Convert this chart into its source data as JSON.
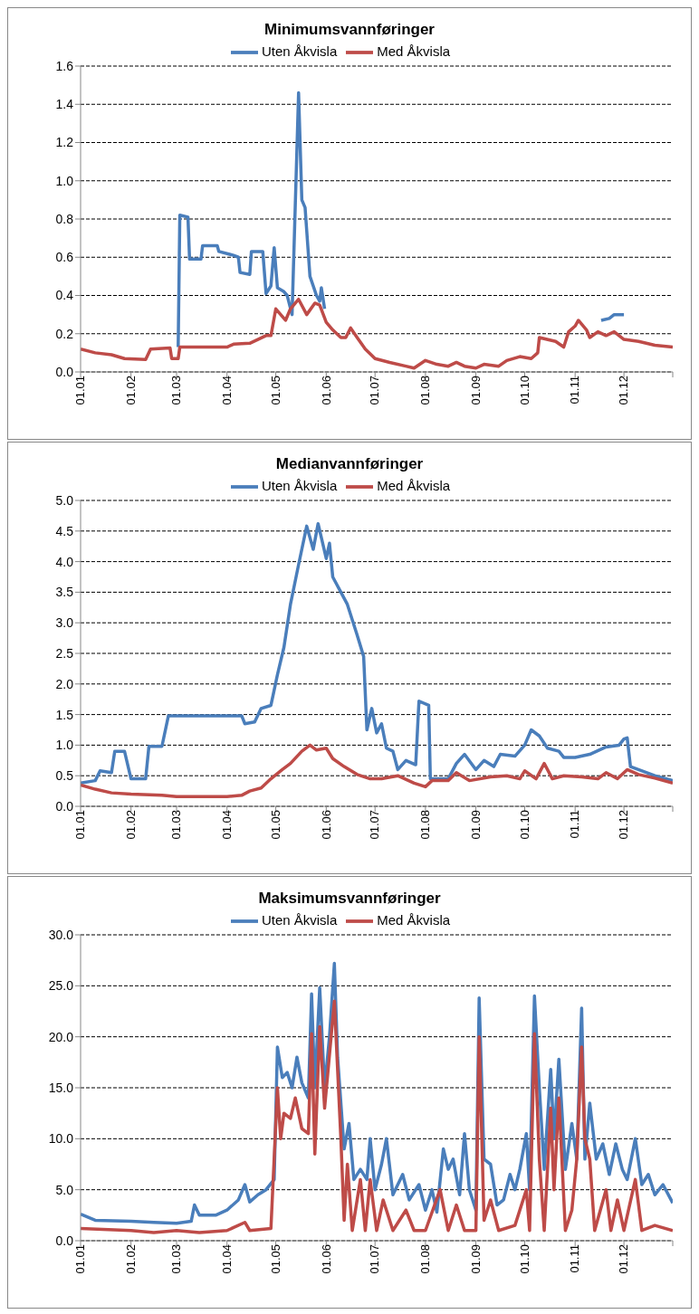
{
  "chart_data": [
    {
      "type": "line",
      "title": "Minimumsvannføringer",
      "legend": "top",
      "grid": "y",
      "marker": "none",
      "ylim": [
        0,
        1.6
      ],
      "yticks": [
        {
          "value": 0,
          "label": "0.0"
        },
        0.2,
        0.4,
        0.6,
        0.8,
        {
          "value": 1,
          "label": "1.0"
        },
        1.2,
        1.4,
        1.6
      ],
      "xlim": [
        "--01-01",
        "--12-31"
      ],
      "xticks": [
        {
          "value": "--01-01",
          "label": "01.01"
        },
        {
          "value": "--02-01",
          "label": "01.02"
        },
        {
          "value": "--03-01",
          "label": "01.03"
        },
        {
          "value": "--04-01",
          "label": "01.04"
        },
        {
          "value": "--05-01",
          "label": "01.05"
        },
        {
          "value": "--06-01",
          "label": "01.06"
        },
        {
          "value": "--07-01",
          "label": "01.07"
        },
        {
          "value": "--08-01",
          "label": "01.08"
        },
        {
          "value": "--09-01",
          "label": "01.09"
        },
        {
          "value": "--10-01",
          "label": "01.10"
        },
        {
          "value": "--11-01",
          "label": "01.11"
        },
        {
          "value": "--12-01",
          "label": "01.12"
        },
        {
          "value": "--12-31",
          "label": null
        }
      ],
      "series": [
        {
          "name": "Uten Åkvisla",
          "color": "#4a7ebb",
          "x": [
            "--03-02",
            "--03-03",
            "--03-08",
            "--03-09",
            "--03-16",
            "--03-17",
            "--03-26",
            "--03-27",
            "--04-05",
            "--04-08",
            "--04-09",
            "--04-15",
            "--04-16",
            "--04-23",
            "--04-25",
            "--04-28",
            "--04-30",
            "--05-02",
            "--05-06",
            "--05-08",
            "--05-11",
            "--05-15",
            "--05-17",
            "--05-19",
            "--05-22",
            "--05-26",
            "--05-28",
            "--05-29",
            "--05-31",
            "--08-01",
            "--11-17",
            "--11-22",
            "--11-25",
            "--12-01"
          ],
          "values": [
            0.13,
            0.82,
            0.81,
            0.59,
            0.59,
            0.66,
            0.66,
            0.63,
            0.61,
            0.6,
            0.52,
            0.51,
            0.63,
            0.63,
            0.41,
            0.45,
            0.65,
            0.44,
            0.42,
            0.4,
            0.3,
            1.46,
            0.9,
            0.86,
            0.5,
            0.4,
            0.37,
            0.44,
            0.33,
            null,
            0.27,
            0.28,
            0.3,
            0.3
          ]
        },
        {
          "name": "Med Åkvisla",
          "color": "#be4b48",
          "x": [
            "--01-01",
            "--01-10",
            "--01-20",
            "--01-28",
            "--02-10",
            "--02-13",
            "--02-25",
            "--02-26",
            "--03-02",
            "--03-03",
            "--04-01",
            "--04-05",
            "--04-15",
            "--04-20",
            "--04-25",
            "--04-28",
            "--05-01",
            "--05-04",
            "--05-07",
            "--05-10",
            "--05-15",
            "--05-20",
            "--05-25",
            "--05-28",
            "--06-01",
            "--06-05",
            "--06-10",
            "--06-13",
            "--06-16",
            "--06-20",
            "--06-25",
            "--07-01",
            "--07-10",
            "--07-20",
            "--07-25",
            "--08-01",
            "--08-08",
            "--08-15",
            "--08-20",
            "--08-25",
            "--09-01",
            "--09-06",
            "--09-15",
            "--09-20",
            "--09-28",
            "--10-05",
            "--10-09",
            "--10-10",
            "--10-20",
            "--10-25",
            "--10-28",
            "--11-01",
            "--11-03",
            "--11-08",
            "--11-10",
            "--11-15",
            "--11-20",
            "--11-25",
            "--12-01",
            "--12-10",
            "--12-20",
            "--12-31"
          ],
          "values": [
            0.12,
            0.1,
            0.09,
            0.07,
            0.065,
            0.12,
            0.125,
            0.07,
            0.07,
            0.13,
            0.13,
            0.145,
            0.15,
            0.17,
            0.19,
            0.19,
            0.33,
            0.3,
            0.27,
            0.33,
            0.38,
            0.3,
            0.36,
            0.35,
            0.26,
            0.22,
            0.18,
            0.18,
            0.23,
            0.18,
            0.12,
            0.07,
            0.05,
            0.03,
            0.02,
            0.06,
            0.04,
            0.03,
            0.05,
            0.03,
            0.02,
            0.04,
            0.03,
            0.06,
            0.08,
            0.07,
            0.1,
            0.18,
            0.16,
            0.13,
            0.21,
            0.24,
            0.27,
            0.22,
            0.18,
            0.21,
            0.19,
            0.21,
            0.17,
            0.16,
            0.14,
            0.13
          ]
        }
      ]
    },
    {
      "type": "line",
      "title": "Medianvannføringer",
      "legend": "top",
      "grid": "y",
      "marker": "none",
      "ylim": [
        0,
        5
      ],
      "yticks": [
        {
          "value": 0,
          "label": "0.0"
        },
        0.5,
        {
          "value": 1,
          "label": "1.0"
        },
        1.5,
        {
          "value": 2,
          "label": "2.0"
        },
        2.5,
        {
          "value": 3,
          "label": "3.0"
        },
        3.5,
        {
          "value": 4,
          "label": "4.0"
        },
        4.5,
        {
          "value": 5,
          "label": "5.0"
        }
      ],
      "xlim": [
        "--01-01",
        "--12-31"
      ],
      "xticks": [
        {
          "value": "--01-01",
          "label": "01.01"
        },
        {
          "value": "--02-01",
          "label": "01.02"
        },
        {
          "value": "--03-01",
          "label": "01.03"
        },
        {
          "value": "--04-01",
          "label": "01.04"
        },
        {
          "value": "--05-01",
          "label": "01.05"
        },
        {
          "value": "--06-01",
          "label": "01.06"
        },
        {
          "value": "--07-01",
          "label": "01.07"
        },
        {
          "value": "--08-01",
          "label": "01.08"
        },
        {
          "value": "--09-01",
          "label": "01.09"
        },
        {
          "value": "--10-01",
          "label": "01.10"
        },
        {
          "value": "--11-01",
          "label": "01.11"
        },
        {
          "value": "--12-01",
          "label": "01.12"
        },
        {
          "value": "--12-31",
          "label": null
        }
      ],
      "series": [
        {
          "name": "Uten Åkvisla",
          "color": "#4a7ebb",
          "x": [
            "--01-01",
            "--01-10",
            "--01-13",
            "--01-20",
            "--01-22",
            "--01-28",
            "--02-01",
            "--02-10",
            "--02-12",
            "--02-20",
            "--02-24",
            "--03-01",
            "--04-10",
            "--04-12",
            "--04-18",
            "--04-22",
            "--04-28",
            "--05-02",
            "--05-06",
            "--05-10",
            "--05-15",
            "--05-20",
            "--05-24",
            "--05-27",
            "--06-01",
            "--06-03",
            "--06-05",
            "--06-10",
            "--06-14",
            "--06-20",
            "--06-24",
            "--06-26",
            "--06-29",
            "--07-02",
            "--07-05",
            "--07-08",
            "--07-12",
            "--07-15",
            "--07-20",
            "--07-26",
            "--07-28",
            "--08-03",
            "--08-04",
            "--08-15",
            "--08-20",
            "--08-25",
            "--09-01",
            "--09-06",
            "--09-12",
            "--09-16",
            "--09-25",
            "--10-01",
            "--10-05",
            "--10-10",
            "--10-15",
            "--10-22",
            "--10-25",
            "--11-01",
            "--11-10",
            "--11-20",
            "--11-28",
            "--12-01",
            "--12-03",
            "--12-05",
            "--12-20",
            "--12-31"
          ],
          "values": [
            0.38,
            0.42,
            0.58,
            0.55,
            0.9,
            0.9,
            0.45,
            0.45,
            0.98,
            0.98,
            1.48,
            1.48,
            1.48,
            1.35,
            1.38,
            1.6,
            1.65,
            2.15,
            2.6,
            3.3,
            3.95,
            4.58,
            4.2,
            4.62,
            4.05,
            4.3,
            3.75,
            3.5,
            3.3,
            2.8,
            2.45,
            1.25,
            1.6,
            1.2,
            1.35,
            0.95,
            0.9,
            0.6,
            0.75,
            0.68,
            1.72,
            1.65,
            0.45,
            0.45,
            0.7,
            0.85,
            0.6,
            0.75,
            0.65,
            0.85,
            0.82,
            1,
            1.25,
            1.15,
            0.95,
            0.9,
            0.8,
            0.8,
            0.85,
            0.97,
            1,
            1.1,
            1.12,
            0.65,
            0.5,
            0.42
          ]
        },
        {
          "name": "Med Åkvisla",
          "color": "#be4b48",
          "x": [
            "--01-01",
            "--01-10",
            "--01-20",
            "--02-01",
            "--02-20",
            "--03-01",
            "--04-01",
            "--04-10",
            "--04-15",
            "--04-22",
            "--04-28",
            "--05-05",
            "--05-10",
            "--05-17",
            "--05-22",
            "--05-26",
            "--06-01",
            "--06-05",
            "--06-12",
            "--06-20",
            "--06-28",
            "--07-05",
            "--07-15",
            "--07-25",
            "--08-01",
            "--08-05",
            "--08-15",
            "--08-20",
            "--08-28",
            "--09-10",
            "--09-20",
            "--09-28",
            "--10-01",
            "--10-08",
            "--10-13",
            "--10-18",
            "--10-25",
            "--11-05",
            "--11-15",
            "--11-20",
            "--11-27",
            "--12-03",
            "--12-10",
            "--12-20",
            "--12-31"
          ],
          "values": [
            0.35,
            0.28,
            0.22,
            0.2,
            0.18,
            0.16,
            0.16,
            0.18,
            0.25,
            0.3,
            0.45,
            0.6,
            0.7,
            0.9,
            1,
            0.92,
            0.95,
            0.78,
            0.65,
            0.52,
            0.45,
            0.45,
            0.5,
            0.38,
            0.32,
            0.42,
            0.42,
            0.55,
            0.42,
            0.48,
            0.5,
            0.45,
            0.58,
            0.45,
            0.7,
            0.45,
            0.5,
            0.48,
            0.45,
            0.55,
            0.45,
            0.6,
            0.52,
            0.46,
            0.38
          ]
        }
      ]
    },
    {
      "type": "line",
      "title": "Maksimumsvannføringer",
      "legend": "top",
      "grid": "y",
      "marker": "none",
      "ylim": [
        0,
        30
      ],
      "yticks": [
        {
          "value": 0,
          "label": "0.0"
        },
        {
          "value": 5,
          "label": "5.0"
        },
        {
          "value": 10,
          "label": "10.0"
        },
        {
          "value": 15,
          "label": "15.0"
        },
        {
          "value": 20,
          "label": "20.0"
        },
        {
          "value": 25,
          "label": "25.0"
        },
        {
          "value": 30,
          "label": "30.0"
        }
      ],
      "xlim": [
        "--01-01",
        "--12-31"
      ],
      "xticks": [
        {
          "value": "--01-01",
          "label": "01.01"
        },
        {
          "value": "--02-01",
          "label": "01.02"
        },
        {
          "value": "--03-01",
          "label": "01.03"
        },
        {
          "value": "--04-01",
          "label": "01.04"
        },
        {
          "value": "--05-01",
          "label": "01.05"
        },
        {
          "value": "--06-01",
          "label": "01.06"
        },
        {
          "value": "--07-01",
          "label": "01.07"
        },
        {
          "value": "--08-01",
          "label": "01.08"
        },
        {
          "value": "--09-01",
          "label": "01.09"
        },
        {
          "value": "--10-01",
          "label": "01.10"
        },
        {
          "value": "--11-01",
          "label": "01.11"
        },
        {
          "value": "--12-01",
          "label": "01.12"
        },
        {
          "value": "--12-31",
          "label": null
        }
      ],
      "series": [
        {
          "name": "Uten Åkvisla",
          "color": "#4a7ebb",
          "x": [
            "--01-01",
            "--01-10",
            "--02-01",
            "--02-15",
            "--03-01",
            "--03-10",
            "--03-12",
            "--03-15",
            "--03-25",
            "--04-01",
            "--04-08",
            "--04-12",
            "--04-15",
            "--04-20",
            "--04-25",
            "--04-30",
            "--05-02",
            "--05-05",
            "--05-08",
            "--05-11",
            "--05-14",
            "--05-17",
            "--05-21",
            "--05-23",
            "--05-25",
            "--05-28",
            "--05-31",
            "--06-03",
            "--06-06",
            "--06-08",
            "--06-12",
            "--06-15",
            "--06-18",
            "--06-22",
            "--06-26",
            "--06-28",
            "--07-01",
            "--07-05",
            "--07-08",
            "--07-12",
            "--07-18",
            "--07-22",
            "--07-28",
            "--08-01",
            "--08-05",
            "--08-08",
            "--08-12",
            "--08-15",
            "--08-18",
            "--08-22",
            "--08-25",
            "--08-28",
            "--09-01",
            "--09-03",
            "--09-06",
            "--09-10",
            "--09-14",
            "--09-18",
            "--09-22",
            "--09-25",
            "--09-28",
            "--10-02",
            "--10-04",
            "--10-07",
            "--10-10",
            "--10-13",
            "--10-17",
            "--10-19",
            "--10-22",
            "--10-26",
            "--10-30",
            "--11-02",
            "--11-05",
            "--11-07",
            "--11-10",
            "--11-14",
            "--11-18",
            "--11-22",
            "--11-26",
            "--11-30",
            "--12-03",
            "--12-08",
            "--12-12",
            "--12-16",
            "--12-20",
            "--12-25",
            "--12-31"
          ],
          "values": [
            2.6,
            2,
            1.9,
            1.8,
            1.7,
            1.9,
            3.5,
            2.5,
            2.5,
            3,
            4,
            5.5,
            3.8,
            4.5,
            5,
            6,
            19,
            16,
            16.5,
            15,
            18,
            15.5,
            14,
            24.2,
            15,
            24.8,
            15,
            20,
            27.2,
            18,
            9,
            11.5,
            6,
            7,
            6,
            10,
            5,
            7.5,
            10,
            4.5,
            6.5,
            4,
            5.5,
            3,
            5,
            2.8,
            9,
            7,
            8,
            4.5,
            10.5,
            5,
            3,
            23.8,
            8,
            7.5,
            3.5,
            4,
            6.5,
            5,
            7,
            10.5,
            5,
            24,
            15,
            7,
            16.8,
            10,
            17.8,
            7,
            11.5,
            8,
            22.8,
            8,
            13.5,
            8,
            9.5,
            6.5,
            9.5,
            7,
            6,
            10,
            5.5,
            6.5,
            4.5,
            5.5,
            3.7
          ]
        },
        {
          "name": "Med Åkvisla",
          "color": "#be4b48",
          "x": [
            "--01-01",
            "--02-01",
            "--02-15",
            "--03-01",
            "--03-15",
            "--04-01",
            "--04-12",
            "--04-15",
            "--04-28",
            "--05-02",
            "--05-04",
            "--05-06",
            "--05-10",
            "--05-13",
            "--05-17",
            "--05-21",
            "--05-23",
            "--05-25",
            "--05-28",
            "--05-31",
            "--06-06",
            "--06-10",
            "--06-12",
            "--06-14",
            "--06-17",
            "--06-22",
            "--06-25",
            "--06-28",
            "--07-02",
            "--07-06",
            "--07-12",
            "--07-20",
            "--07-25",
            "--08-01",
            "--08-10",
            "--08-15",
            "--08-20",
            "--08-25",
            "--09-01",
            "--09-03",
            "--09-06",
            "--09-10",
            "--09-15",
            "--09-25",
            "--10-02",
            "--10-04",
            "--10-07",
            "--10-10",
            "--10-13",
            "--10-17",
            "--10-19",
            "--10-22",
            "--10-26",
            "--10-30",
            "--11-02",
            "--11-05",
            "--11-07",
            "--11-10",
            "--11-13",
            "--11-20",
            "--11-23",
            "--11-27",
            "--12-01",
            "--12-08",
            "--12-12",
            "--12-20",
            "--12-31"
          ],
          "values": [
            1.2,
            1,
            0.8,
            1,
            0.8,
            1,
            1.8,
            1,
            1.2,
            15,
            10,
            12.5,
            12,
            14,
            11,
            10.5,
            20.3,
            8.5,
            21,
            13,
            23.5,
            10,
            2,
            7.5,
            1,
            6,
            1,
            6,
            1,
            4,
            1,
            3,
            1,
            1,
            5,
            1,
            3.5,
            1,
            1,
            20,
            2,
            4,
            1,
            1.5,
            5,
            1,
            20.3,
            8,
            1,
            13,
            5,
            14,
            1,
            3,
            8,
            19,
            10,
            8,
            1,
            5,
            1,
            4,
            1,
            6,
            1,
            1.5,
            1
          ]
        }
      ]
    }
  ]
}
